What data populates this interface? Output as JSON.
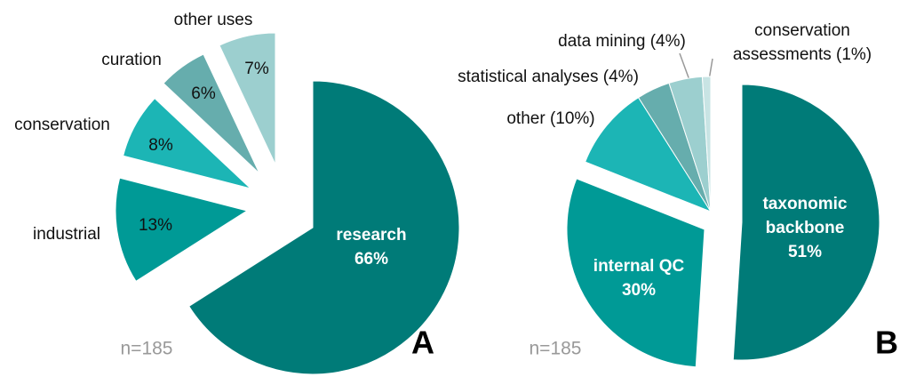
{
  "chart_data": [
    {
      "type": "pie",
      "panel": "A",
      "note": "n=185",
      "categories": [
        "research",
        "industrial",
        "conservation",
        "curation",
        "other uses"
      ],
      "values": [
        66,
        13,
        8,
        6,
        7
      ],
      "value_labels": [
        "66%",
        "13%",
        "8%",
        "6%",
        "7%"
      ],
      "colors": [
        "#007b78",
        "#009a96",
        "#1cb5b5",
        "#66adad",
        "#9ccfcf"
      ]
    },
    {
      "type": "pie",
      "panel": "B",
      "note": "n=185",
      "categories": [
        "taxonomic backbone",
        "internal QC",
        "other",
        "statistical analyses",
        "data mining",
        "conservation assessments"
      ],
      "values": [
        51,
        30,
        10,
        4,
        4,
        1
      ],
      "value_labels": [
        "51%",
        "30%",
        "(10%)",
        "(4%)",
        "(4%)",
        "(1%)"
      ],
      "colors": [
        "#007b78",
        "#009a96",
        "#1cb5b5",
        "#66adad",
        "#9ccfcf",
        "#c8e4e4"
      ]
    }
  ]
}
